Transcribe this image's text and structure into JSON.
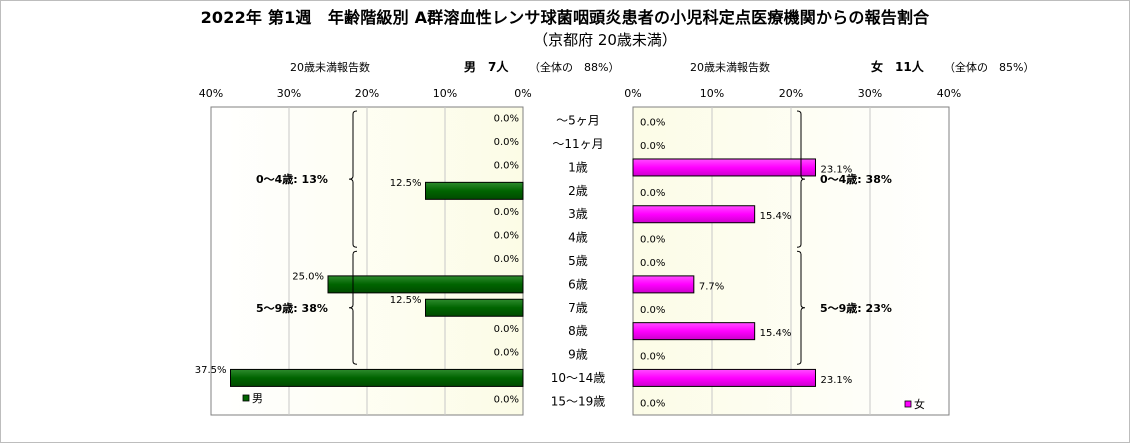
{
  "chart_data": {
    "type": "bar",
    "title": "2022年 第1週　年齢階級別 A群溶血性レンサ球菌咽頭炎患者の小児科定点医療機関からの報告割合",
    "subtitle": "（京都府 20歳未満）",
    "categories": [
      "～5ヶ月",
      "～11ヶ月",
      "1歳",
      "2歳",
      "3歳",
      "4歳",
      "5歳",
      "6歳",
      "7歳",
      "8歳",
      "9歳",
      "10～14歳",
      "15～19歳"
    ],
    "xlim": [
      0,
      40
    ],
    "xticks": [
      "0%",
      "10%",
      "20%",
      "30%",
      "40%"
    ],
    "series": [
      {
        "name": "男",
        "color": "#006400",
        "header_label": "20歳未満報告数",
        "header_count": "男　7人",
        "header_share": "（全体の　88%）",
        "values": [
          0.0,
          0.0,
          0.0,
          12.5,
          0.0,
          0.0,
          0.0,
          25.0,
          12.5,
          0.0,
          0.0,
          37.5,
          0.0
        ],
        "labels": [
          "0.0%",
          "0.0%",
          "0.0%",
          "12.5%",
          "0.0%",
          "0.0%",
          "0.0%",
          "25.0%",
          "12.5%",
          "0.0%",
          "0.0%",
          "37.5%",
          "0.0%"
        ],
        "groups": [
          {
            "label": "0～4歳: 13%",
            "from": 0,
            "to": 5
          },
          {
            "label": "5～9歳: 38%",
            "from": 6,
            "to": 10
          }
        ]
      },
      {
        "name": "女",
        "color": "#ff00ff",
        "header_label": "20歳未満報告数",
        "header_count": "女　11人",
        "header_share": "（全体の　85%）",
        "values": [
          0.0,
          0.0,
          23.1,
          0.0,
          15.4,
          0.0,
          0.0,
          7.7,
          0.0,
          15.4,
          0.0,
          23.1,
          0.0
        ],
        "labels": [
          "0.0%",
          "0.0%",
          "23.1%",
          "0.0%",
          "15.4%",
          "0.0%",
          "0.0%",
          "7.7%",
          "0.0%",
          "15.4%",
          "0.0%",
          "23.1%",
          "0.0%"
        ],
        "groups": [
          {
            "label": "0～4歳: 38%",
            "from": 0,
            "to": 5
          },
          {
            "label": "5～9歳: 23%",
            "from": 6,
            "to": 10
          }
        ]
      }
    ],
    "grid": true,
    "legend_position": "bottom"
  }
}
